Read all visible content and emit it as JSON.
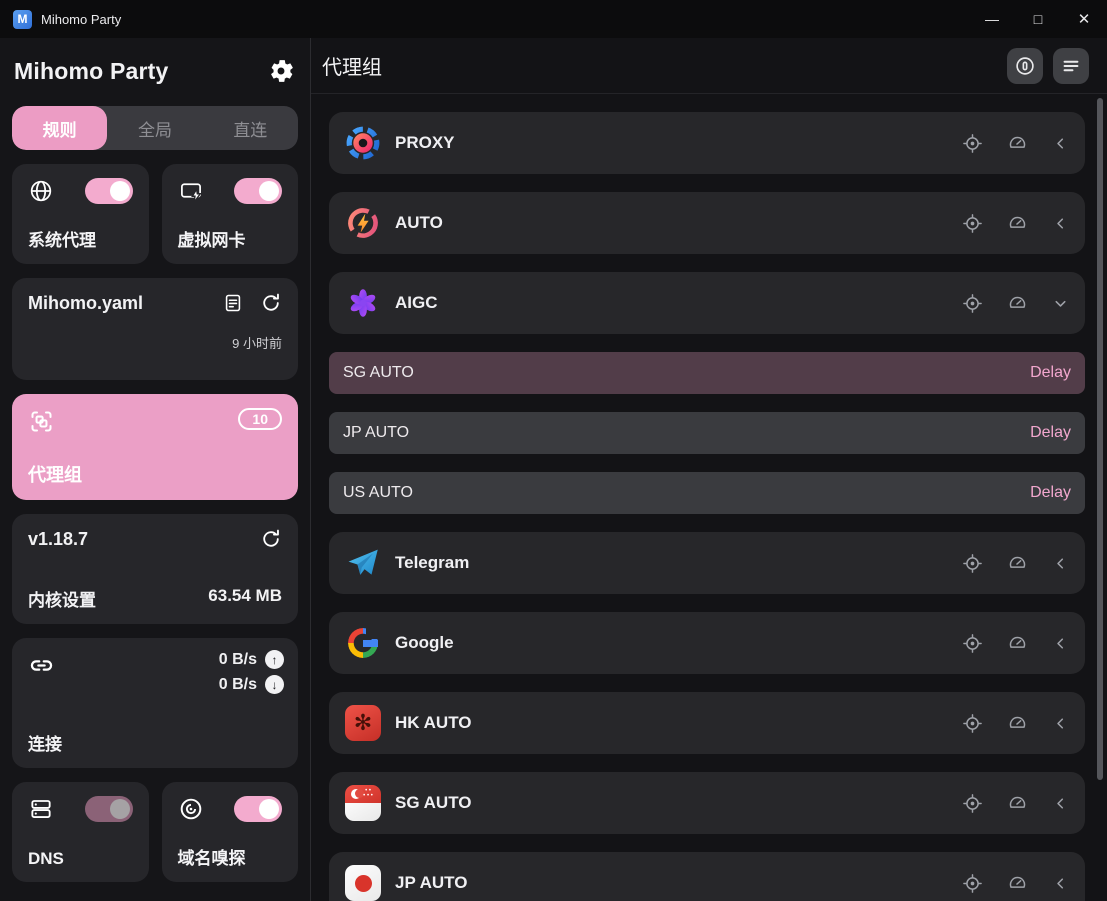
{
  "colors": {
    "accent_pink": "#ec9cc4",
    "toggle_on_pink": "#f3abce",
    "toggle_off_track": "#8b6277",
    "delay_pink": "#f2a7ce",
    "selected_subrow_bg": "#523d49",
    "card_bg": "#26262a",
    "main_bg": "#131316"
  },
  "titlebar": {
    "title": "Mihomo Party",
    "logo_letter": "M",
    "minimize_icon": "—",
    "maximize_icon": "□",
    "close_icon": "✕"
  },
  "sidebar": {
    "app_title": "Mihomo Party",
    "tabs": [
      {
        "label": "规则",
        "active": true
      },
      {
        "label": "全局",
        "active": false
      },
      {
        "label": "直连",
        "active": false
      }
    ],
    "system_proxy": {
      "label": "系统代理",
      "enabled": true
    },
    "tun": {
      "label": "虚拟网卡",
      "enabled": true
    },
    "profile": {
      "name": "Mihomo.yaml",
      "updated": "9 小时前"
    },
    "proxy_groups": {
      "label": "代理组",
      "badge": "10"
    },
    "kernel": {
      "version": "v1.18.7",
      "label": "内核设置",
      "memory": "63.54 MB"
    },
    "connections": {
      "label": "连接",
      "upload": "0 B/s",
      "download": "0 B/s",
      "upload_arrow": "↑",
      "download_arrow": "↓"
    },
    "dns": {
      "label": "DNS",
      "enabled": false
    },
    "sniffer": {
      "label": "域名嗅探",
      "enabled": true
    }
  },
  "main": {
    "title": "代理组",
    "header_icons": [
      "pause-circle-icon",
      "list-lines-icon"
    ],
    "row_action_icons": [
      "locate-icon",
      "speed-test-icon",
      "chevron-icon"
    ],
    "groups": [
      {
        "name": "PROXY",
        "icon": "shutter",
        "expanded": false
      },
      {
        "name": "AUTO",
        "icon": "lightning-ring",
        "expanded": false
      },
      {
        "name": "AIGC",
        "icon": "openai-flower",
        "expanded": true,
        "children": [
          {
            "name": "SG AUTO",
            "selected": true,
            "delay_label": "Delay"
          },
          {
            "name": "JP AUTO",
            "selected": false,
            "delay_label": "Delay"
          },
          {
            "name": "US AUTO",
            "selected": false,
            "delay_label": "Delay"
          }
        ]
      },
      {
        "name": "Telegram",
        "icon": "telegram-plane",
        "expanded": false
      },
      {
        "name": "Google",
        "icon": "google-g",
        "expanded": false
      },
      {
        "name": "HK AUTO",
        "icon": "flag-hk",
        "expanded": false
      },
      {
        "name": "SG AUTO",
        "icon": "flag-sg",
        "expanded": false
      },
      {
        "name": "JP AUTO",
        "icon": "flag-jp",
        "expanded": false
      }
    ]
  }
}
